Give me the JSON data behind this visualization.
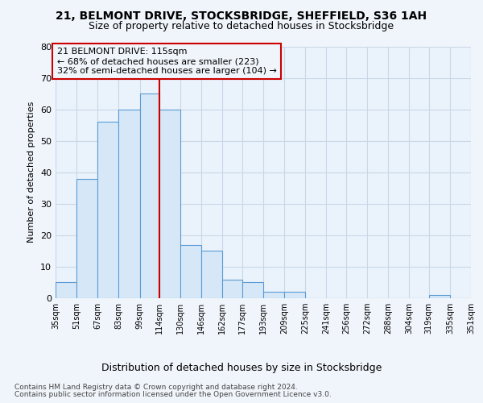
{
  "title1": "21, BELMONT DRIVE, STOCKSBRIDGE, SHEFFIELD, S36 1AH",
  "title2": "Size of property relative to detached houses in Stocksbridge",
  "xlabel": "Distribution of detached houses by size in Stocksbridge",
  "ylabel": "Number of detached properties",
  "footer1": "Contains HM Land Registry data © Crown copyright and database right 2024.",
  "footer2": "Contains public sector information licensed under the Open Government Licence v3.0.",
  "annotation_line1": "21 BELMONT DRIVE: 115sqm",
  "annotation_line2": "← 68% of detached houses are smaller (223)",
  "annotation_line3": "32% of semi-detached houses are larger (104) →",
  "bin_edges": [
    35,
    51,
    67,
    83,
    99,
    114,
    130,
    146,
    162,
    177,
    193,
    209,
    225,
    241,
    256,
    272,
    288,
    304,
    319,
    335,
    351
  ],
  "bar_heights": [
    5,
    38,
    56,
    60,
    65,
    60,
    17,
    15,
    6,
    5,
    2,
    2,
    0,
    0,
    0,
    0,
    0,
    0,
    1,
    0
  ],
  "bar_color": "#d6e8f7",
  "bar_edge_color": "#5b9bd5",
  "vline_color": "#cc0000",
  "vline_x": 114,
  "annotation_box_edgecolor": "#cc0000",
  "grid_color": "#c8d8e8",
  "background_color": "#f0f5fb",
  "plot_bg_color": "#eaf2fb",
  "ylim": [
    0,
    80
  ],
  "yticks": [
    0,
    10,
    20,
    30,
    40,
    50,
    60,
    70,
    80
  ],
  "title1_fontsize": 10,
  "title2_fontsize": 9,
  "ylabel_fontsize": 8,
  "xlabel_fontsize": 9,
  "tick_fontsize": 7,
  "annotation_fontsize": 8,
  "footer_fontsize": 6.5
}
